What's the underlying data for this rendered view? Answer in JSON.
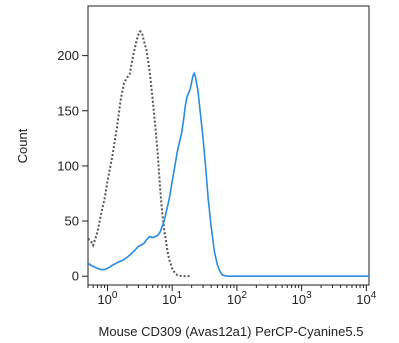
{
  "chart_data": {
    "type": "line",
    "title": "",
    "xlabel": "Mouse CD309 (Avas12a1) PerCP-Cyanine5.5",
    "ylabel": "Count",
    "x_scale": "log",
    "xlim": [
      0.5,
      11000
    ],
    "ylim": [
      -8,
      245
    ],
    "grid": false,
    "legend": "none",
    "y_ticks": [
      {
        "value": 0,
        "label": "0"
      },
      {
        "value": 50,
        "label": "50"
      },
      {
        "value": 100,
        "label": "100"
      },
      {
        "value": 150,
        "label": "150"
      },
      {
        "value": 200,
        "label": "200"
      }
    ],
    "x_ticks": [
      {
        "value": 1,
        "base": "10",
        "exp": "0"
      },
      {
        "value": 10,
        "base": "10",
        "exp": "1"
      },
      {
        "value": 100,
        "base": "10",
        "exp": "2"
      },
      {
        "value": 1000,
        "base": "10",
        "exp": "3"
      },
      {
        "value": 10000,
        "base": "10",
        "exp": "4"
      }
    ],
    "series": [
      {
        "style": "dotted",
        "color": "#555555",
        "points": [
          [
            0.5,
            34
          ],
          [
            0.55,
            32
          ],
          [
            0.6,
            28
          ],
          [
            0.7,
            40
          ],
          [
            0.8,
            57
          ],
          [
            0.9,
            70
          ],
          [
            1.0,
            86
          ],
          [
            1.2,
            110
          ],
          [
            1.4,
            135
          ],
          [
            1.6,
            160
          ],
          [
            1.8,
            175
          ],
          [
            2.0,
            180
          ],
          [
            2.2,
            183
          ],
          [
            2.4,
            195
          ],
          [
            2.6,
            205
          ],
          [
            2.8,
            213
          ],
          [
            3.0,
            219
          ],
          [
            3.2,
            222
          ],
          [
            3.4,
            221
          ],
          [
            3.6,
            215
          ],
          [
            4.0,
            205
          ],
          [
            4.5,
            185
          ],
          [
            5.0,
            160
          ],
          [
            5.5,
            135
          ],
          [
            6.0,
            110
          ],
          [
            6.5,
            80
          ],
          [
            7.0,
            58
          ],
          [
            7.5,
            43
          ],
          [
            8.0,
            32
          ],
          [
            8.5,
            22
          ],
          [
            9.0,
            15
          ],
          [
            10.0,
            7
          ],
          [
            11.0,
            3
          ],
          [
            12.0,
            1
          ],
          [
            14.0,
            0
          ],
          [
            20.0,
            0
          ]
        ]
      },
      {
        "style": "solid",
        "color": "#2a8be0",
        "points": [
          [
            0.5,
            12
          ],
          [
            0.55,
            10
          ],
          [
            0.6,
            9
          ],
          [
            0.7,
            7
          ],
          [
            0.8,
            6
          ],
          [
            0.9,
            6
          ],
          [
            1.0,
            7
          ],
          [
            1.2,
            10
          ],
          [
            1.5,
            13
          ],
          [
            1.8,
            15
          ],
          [
            2.0,
            17
          ],
          [
            2.3,
            20
          ],
          [
            2.7,
            24
          ],
          [
            3.0,
            27
          ],
          [
            3.3,
            28
          ],
          [
            3.7,
            30
          ],
          [
            4.0,
            33
          ],
          [
            4.5,
            36
          ],
          [
            5.0,
            35
          ],
          [
            5.5,
            36
          ],
          [
            6.0,
            37
          ],
          [
            6.5,
            40
          ],
          [
            7.0,
            45
          ],
          [
            7.5,
            50
          ],
          [
            8.0,
            57
          ],
          [
            9.0,
            70
          ],
          [
            10.0,
            86
          ],
          [
            11.0,
            100
          ],
          [
            12.0,
            113
          ],
          [
            13.0,
            122
          ],
          [
            14.0,
            130
          ],
          [
            15.0,
            142
          ],
          [
            16.0,
            155
          ],
          [
            17.0,
            163
          ],
          [
            18.0,
            166
          ],
          [
            19.0,
            170
          ],
          [
            20.0,
            176
          ],
          [
            21.0,
            182
          ],
          [
            22.0,
            184
          ],
          [
            23.0,
            180
          ],
          [
            25.0,
            168
          ],
          [
            27.0,
            150
          ],
          [
            30.0,
            125
          ],
          [
            33.0,
            98
          ],
          [
            36.0,
            70
          ],
          [
            40.0,
            45
          ],
          [
            45.0,
            22
          ],
          [
            50.0,
            10
          ],
          [
            55.0,
            4
          ],
          [
            60.0,
            1
          ],
          [
            70.0,
            0
          ],
          [
            100.0,
            0
          ],
          [
            11000.0,
            0
          ]
        ]
      }
    ]
  }
}
